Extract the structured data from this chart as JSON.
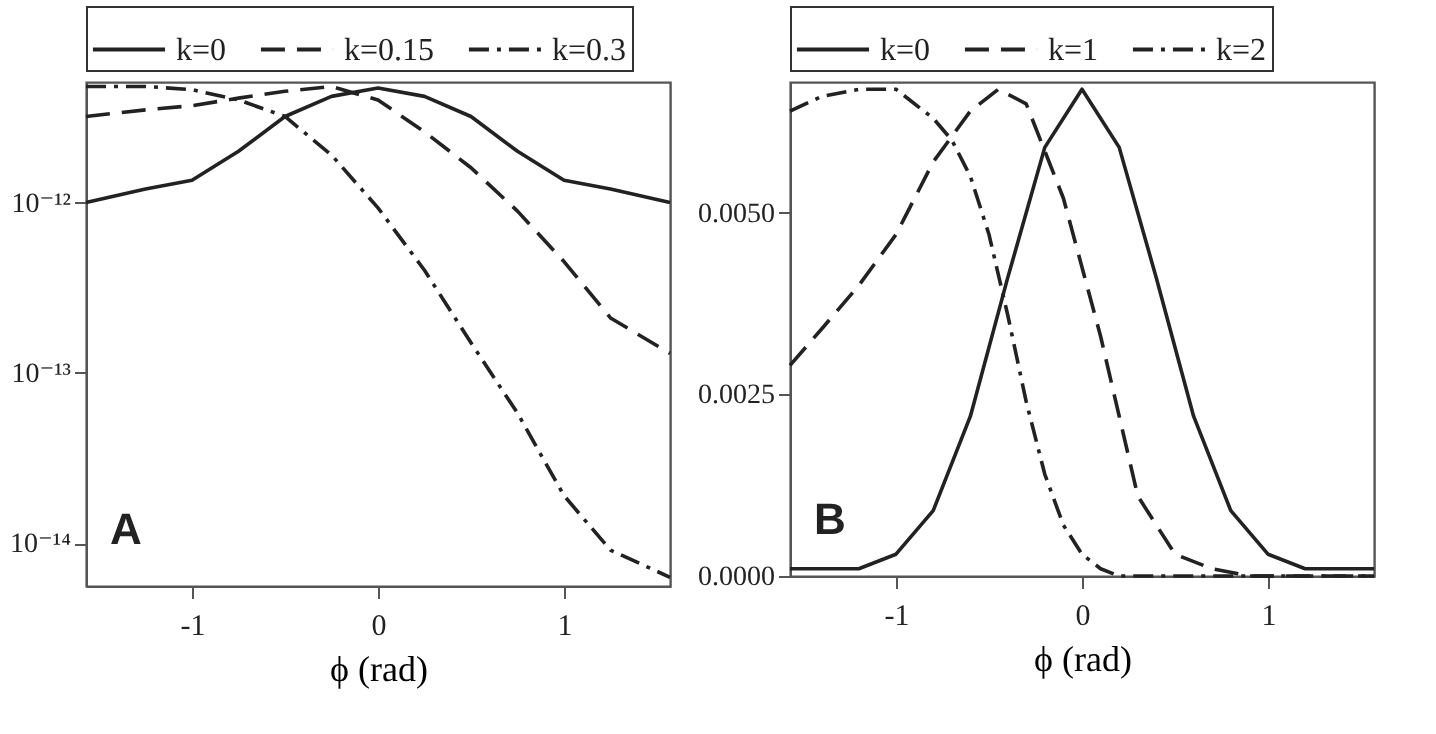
{
  "chart_data": [
    {
      "type": "line",
      "xlabel": "ϕ  (rad)",
      "log": "y",
      "legend": "top",
      "grid": false,
      "marker": "none",
      "xlim": [
        -1.57,
        1.57
      ],
      "xticks": [
        -1,
        0,
        1
      ],
      "ylim": [
        5.6e-15,
        5.1e-12
      ],
      "yticks": [
        {
          "value": 1e-14,
          "label": "10⁻¹⁴"
        },
        {
          "value": 1e-13,
          "label": "10⁻¹³"
        },
        {
          "value": 1e-12,
          "label": "10⁻¹²"
        }
      ],
      "annotations": [
        "A"
      ],
      "series": [
        {
          "name": "k=0",
          "color": "#222222",
          "line_style": "solid",
          "x": [
            -1.57,
            -1.25,
            -1,
            -0.75,
            -0.5,
            -0.25,
            0,
            0.25,
            0.5,
            0.75,
            1,
            1.25,
            1.57
          ],
          "values": [
            1e-12,
            1.2e-12,
            1.35e-12,
            2e-12,
            3.2e-12,
            4.2e-12,
            4.7e-12,
            4.2e-12,
            3.2e-12,
            2e-12,
            1.35e-12,
            1.2e-12,
            1e-12
          ]
        },
        {
          "name": "k=0.15",
          "color": "#222222",
          "line_style": "dashed",
          "x": [
            -1.57,
            -1.25,
            -1,
            -0.75,
            -0.5,
            -0.25,
            0,
            0.25,
            0.5,
            0.75,
            1,
            1.25,
            1.57
          ],
          "values": [
            3.2e-12,
            3.5e-12,
            3.7e-12,
            4.1e-12,
            4.5e-12,
            4.8e-12,
            4e-12,
            2.6e-12,
            1.6e-12,
            8.9e-13,
            4.5e-13,
            2.1e-13,
            1.3e-13
          ]
        },
        {
          "name": "k=0.3",
          "color": "#222222",
          "line_style": "dashdot",
          "x": [
            -1.57,
            -1.25,
            -1,
            -0.75,
            -0.5,
            -0.25,
            0,
            0.25,
            0.5,
            0.75,
            1,
            1.25,
            1.57
          ],
          "values": [
            4.8e-12,
            4.8e-12,
            4.6e-12,
            4e-12,
            3.2e-12,
            1.9e-12,
            9.3e-13,
            4e-13,
            1.5e-13,
            5.8e-14,
            1.9e-14,
            9.1e-15,
            6.3e-15
          ]
        }
      ]
    },
    {
      "type": "line",
      "xlabel": "ϕ  (rad)",
      "legend": "top",
      "grid": false,
      "marker": "none",
      "xlim": [
        -1.57,
        1.57
      ],
      "xticks": [
        -1,
        0,
        1
      ],
      "ylim": [
        0,
        0.0068
      ],
      "yticks": [
        {
          "value": 0,
          "label": "0.0000"
        },
        {
          "value": 0.0025,
          "label": "0.0025"
        },
        {
          "value": 0.005,
          "label": "0.0050"
        }
      ],
      "annotations": [
        "B"
      ],
      "series": [
        {
          "name": "k=0",
          "color": "#222222",
          "line_style": "solid",
          "x": [
            -1.57,
            -1.2,
            -1,
            -0.8,
            -0.6,
            -0.4,
            -0.2,
            0,
            0.2,
            0.4,
            0.6,
            0.8,
            1,
            1.2,
            1.57
          ],
          "values": [
            0.0001,
            0.0001,
            0.0003,
            0.0009,
            0.0022,
            0.0041,
            0.0059,
            0.0067,
            0.0059,
            0.0041,
            0.0022,
            0.0009,
            0.0003,
            0.0001,
            0.0001
          ]
        },
        {
          "name": "k=1",
          "color": "#222222",
          "line_style": "dashed",
          "x": [
            -1.57,
            -1.4,
            -1.2,
            -1,
            -0.8,
            -0.6,
            -0.45,
            -0.3,
            -0.1,
            0.1,
            0.3,
            0.5,
            0.7,
            0.9,
            1.2,
            1.57
          ],
          "values": [
            0.0029,
            0.0034,
            0.004,
            0.0047,
            0.0057,
            0.0064,
            0.0067,
            0.0065,
            0.0052,
            0.0033,
            0.0011,
            0.0003,
            0.0001,
            0,
            0,
            0
          ]
        },
        {
          "name": "k=2",
          "color": "#222222",
          "line_style": "dashdot",
          "x": [
            -1.57,
            -1.4,
            -1.2,
            -1,
            -0.8,
            -0.7,
            -0.6,
            -0.5,
            -0.4,
            -0.3,
            -0.2,
            -0.1,
            0,
            0.1,
            0.2,
            0.5,
            1,
            1.57
          ],
          "values": [
            0.0064,
            0.0066,
            0.0067,
            0.0067,
            0.0063,
            0.006,
            0.0055,
            0.0047,
            0.0036,
            0.0024,
            0.0014,
            0.0007,
            0.0003,
            0.0001,
            0,
            0,
            0,
            0
          ]
        }
      ]
    }
  ]
}
